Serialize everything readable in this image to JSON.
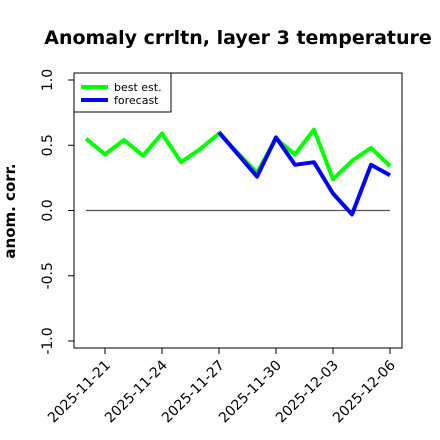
{
  "chart_data": {
    "type": "line",
    "title": "Anomaly crrltn, layer 3 temperature",
    "ylabel": "anom. corr.",
    "xlabel": "",
    "ylim": [
      -1.0,
      1.0
    ],
    "yticks": [
      -1.0,
      -0.5,
      0.0,
      0.5,
      1.0
    ],
    "ytick_labels": [
      "-1.0",
      "-0.5",
      "0.0",
      "0.5",
      "1.0"
    ],
    "x_dates": [
      "2025-11-20",
      "2025-11-21",
      "2025-11-22",
      "2025-11-23",
      "2025-11-24",
      "2025-11-25",
      "2025-11-26",
      "2025-11-27",
      "2025-11-28",
      "2025-11-29",
      "2025-11-30",
      "2025-12-01",
      "2025-12-02",
      "2025-12-03",
      "2025-12-04",
      "2025-12-05",
      "2025-12-06"
    ],
    "xticks": [
      {
        "label": "2025-11-21",
        "date": "2025-11-21",
        "color": "#000000"
      },
      {
        "label": "2025-11-24",
        "date": "2025-11-24",
        "color": "#000000"
      },
      {
        "label": "2025-11-27",
        "date": "2025-11-27",
        "color": "#228B22"
      },
      {
        "label": "2025-11-30",
        "date": "2025-11-30",
        "color": "#000000"
      },
      {
        "label": "2025-12-03",
        "date": "2025-12-03",
        "color": "#000000"
      },
      {
        "label": "2025-12-06",
        "date": "2025-12-06",
        "color": "#000000"
      }
    ],
    "series": [
      {
        "name": "best est.",
        "color": "#00ff00",
        "x": [
          "2025-11-20",
          "2025-11-21",
          "2025-11-22",
          "2025-11-23",
          "2025-11-24",
          "2025-11-25",
          "2025-11-26",
          "2025-11-27",
          "2025-11-28",
          "2025-11-29",
          "2025-11-30",
          "2025-12-01",
          "2025-12-02",
          "2025-12-03",
          "2025-12-04",
          "2025-12-05",
          "2025-12-06"
        ],
        "values": [
          0.55,
          0.43,
          0.54,
          0.42,
          0.59,
          0.37,
          0.47,
          0.59,
          0.44,
          0.29,
          0.55,
          0.43,
          0.62,
          0.24,
          0.38,
          0.48,
          0.34
        ]
      },
      {
        "name": "forecast",
        "color": "#0000ff",
        "x": [
          "2025-11-27",
          "2025-11-28",
          "2025-11-29",
          "2025-11-30",
          "2025-12-01",
          "2025-12-02",
          "2025-12-03",
          "2025-12-04",
          "2025-12-05",
          "2025-12-06"
        ],
        "values": [
          0.6,
          0.43,
          0.26,
          0.56,
          0.35,
          0.37,
          0.13,
          -0.03,
          0.35,
          0.27
        ]
      }
    ],
    "reference_line": {
      "y": 0.0,
      "color": "#555555"
    },
    "legend": {
      "placement": "top-left",
      "entries": [
        "best est.",
        "forecast"
      ]
    }
  }
}
